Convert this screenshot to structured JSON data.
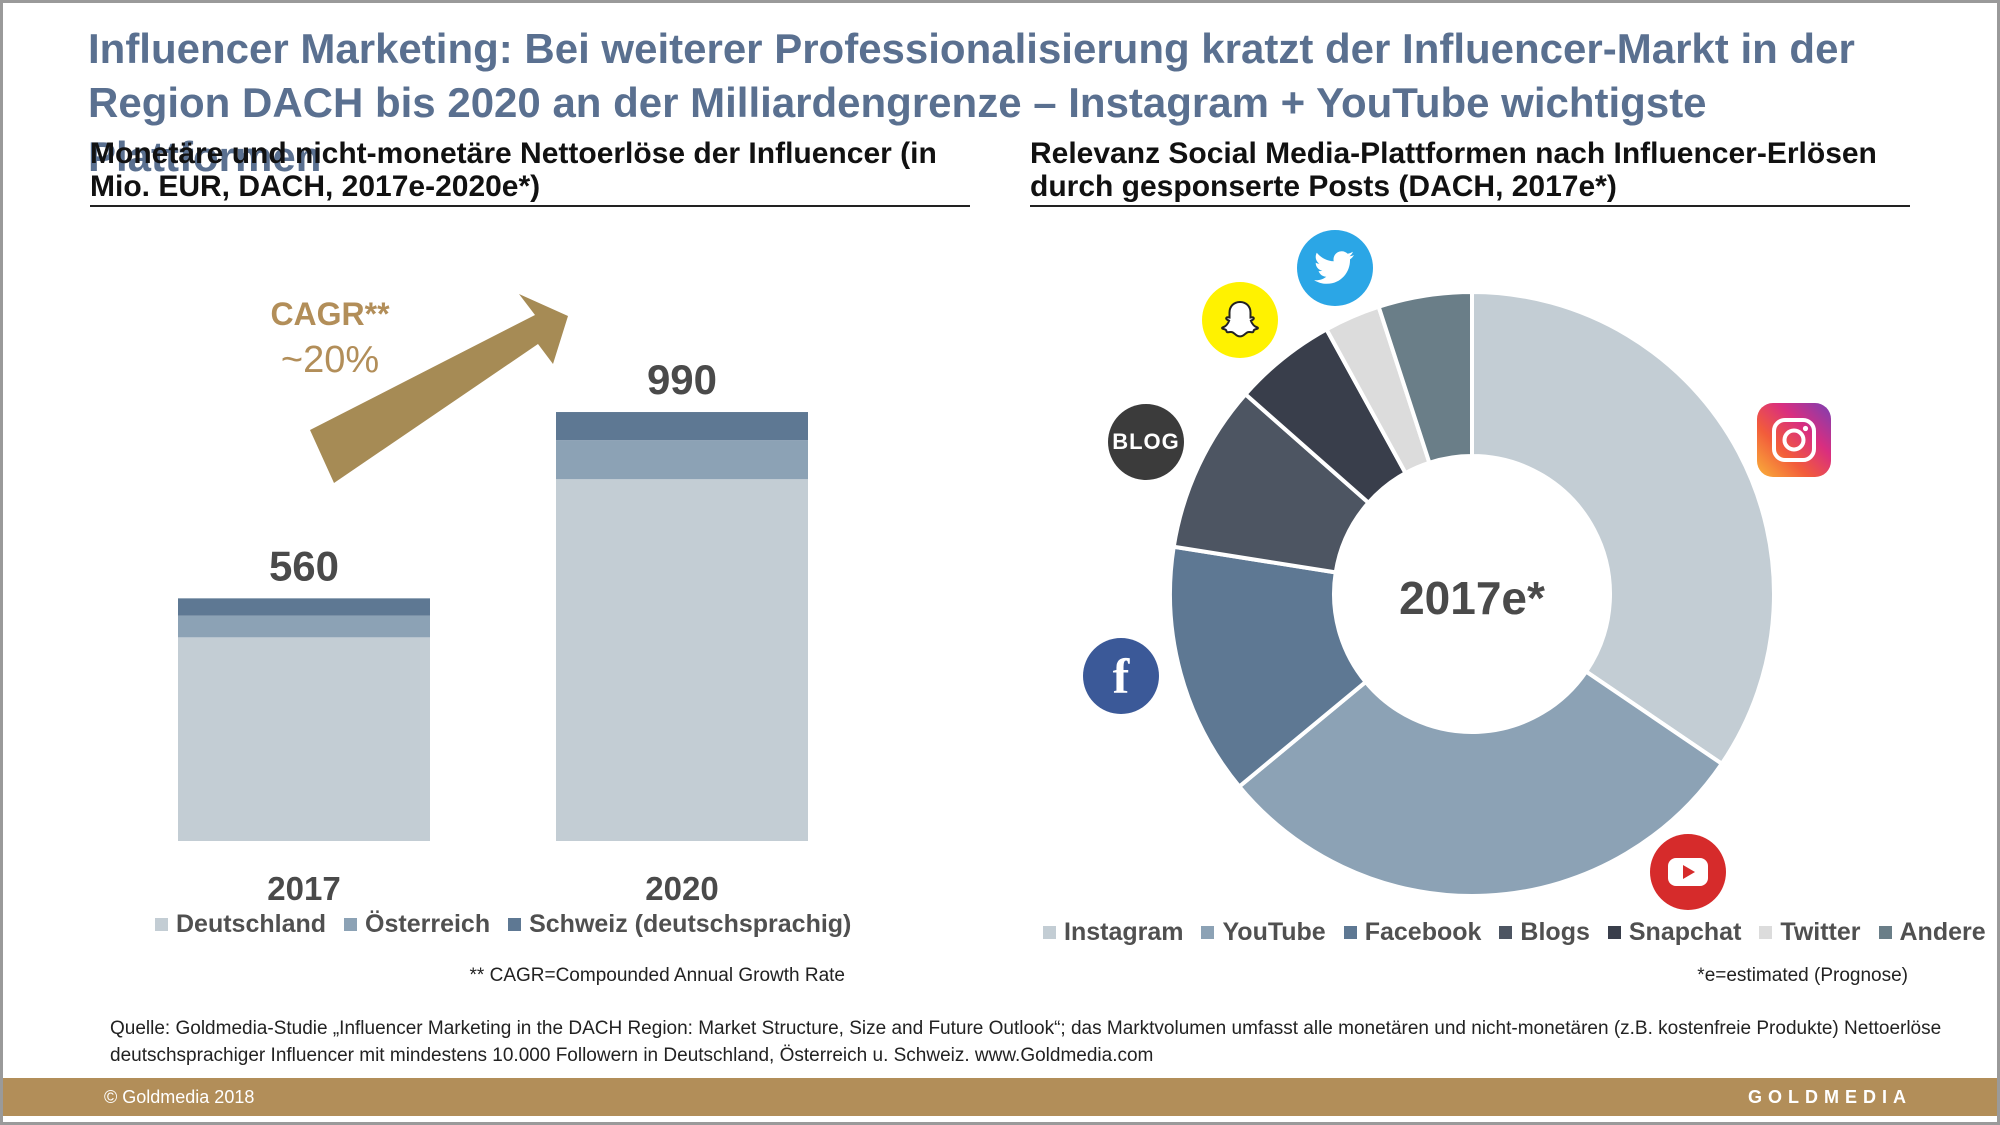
{
  "title": "Influencer Marketing: Bei weiterer Professionalisierung kratzt der Influencer-Markt in der Region DACH bis 2020 an der Milliardengrenze – Instagram + YouTube wichtigste Plattformen",
  "left_subtitle": "Monetäre und nicht-monetäre Nettoerlöse der Influencer (in Mio. EUR, DACH, 2017e-2020e*)",
  "right_subtitle": "Relevanz Social Media-Plattformen nach Influencer-Erlösen durch gesponserte Posts (DACH, 2017e*)",
  "cagr": {
    "label": "CAGR**",
    "value": "~20%"
  },
  "cagr_note": "** CAGR=Compounded Annual Growth Rate",
  "estimate_note": "*e=estimated (Prognose)",
  "source": "Quelle: Goldmedia-Studie „Influencer Marketing in the DACH Region: Market Structure, Size and Future Outlook“; das Marktvolumen umfasst alle monetären und nicht-monetären (z.B. kostenfreie Produkte) Nettoerlöse deutschsprachiger Influencer mit mindestens 10.000 Followern in Deutschland, Österreich u. Schweiz. www.Goldmedia.com",
  "copyright": "© Goldmedia 2018",
  "brand": "GOLDMEDIA",
  "icons": {
    "twitter": "twitter-bird-icon",
    "snapchat": "snapchat-ghost-icon",
    "blog": "BLOG",
    "facebook": "f",
    "instagram": "instagram-camera-icon",
    "youtube": "youtube-play-icon"
  },
  "colors": {
    "title": "#5a7090",
    "accent_gold": "#b28e59",
    "cagr_arrow": "#a68b55"
  },
  "chart_data": [
    {
      "type": "bar",
      "stacked": true,
      "categories": [
        "2017",
        "2020"
      ],
      "totals": [
        560,
        990
      ],
      "series": [
        {
          "name": "Deutschland",
          "values": [
            470,
            835
          ],
          "color": "#c3cdd4"
        },
        {
          "name": "Österreich",
          "values": [
            50,
            90
          ],
          "color": "#8ca2b5"
        },
        {
          "name": "Schweiz (deutschsprachig)",
          "values": [
            40,
            65
          ],
          "color": "#5e7893"
        }
      ],
      "ylim": [
        0,
        1000
      ]
    },
    {
      "type": "pie",
      "donut": true,
      "center_label": "2017e*",
      "slices": [
        {
          "name": "Instagram",
          "value": 34.5,
          "color": "#c3cdd4"
        },
        {
          "name": "YouTube",
          "value": 29.5,
          "color": "#8ca2b5"
        },
        {
          "name": "Facebook",
          "value": 13.5,
          "color": "#5e7893"
        },
        {
          "name": "Blogs",
          "value": 9.0,
          "color": "#4d5562"
        },
        {
          "name": "Snapchat",
          "value": 5.5,
          "color": "#393e4b"
        },
        {
          "name": "Twitter",
          "value": 3.0,
          "color": "#dcdcdc"
        },
        {
          "name": "Andere",
          "value": 5.0,
          "color": "#6a7e88"
        }
      ]
    }
  ]
}
